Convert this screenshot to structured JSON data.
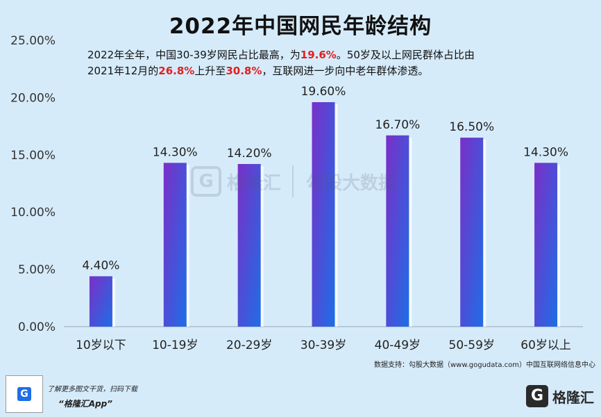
{
  "chart_data": {
    "type": "bar",
    "title": "2022年中国网民年龄结构",
    "categories": [
      "10岁以下",
      "10-19岁",
      "20-29岁",
      "30-39岁",
      "40-49岁",
      "50-59岁",
      "60岁以上"
    ],
    "values": [
      4.4,
      14.3,
      14.2,
      19.6,
      16.7,
      16.5,
      14.3
    ],
    "value_labels": [
      "4.40%",
      "14.30%",
      "14.20%",
      "19.60%",
      "16.70%",
      "16.50%",
      "14.30%"
    ],
    "ylim": [
      0,
      25
    ],
    "yticks": [
      0,
      5,
      10,
      15,
      20,
      25
    ],
    "ytick_labels": [
      "0.00%",
      "5.00%",
      "10.00%",
      "15.00%",
      "20.00%",
      "25.00%"
    ],
    "xlabel": "",
    "ylabel": "",
    "grid": false,
    "legend": "none",
    "bar_gradient": [
      "#7a2fc8",
      "#1e6ee6"
    ],
    "annotation_segments": [
      {
        "text": "2022年全年，中国30-39岁网民占比最高，为",
        "highlight": false
      },
      {
        "text": "19.6%",
        "highlight": true
      },
      {
        "text": "。50岁及以上网民群体占比由",
        "highlight": false
      },
      {
        "text": "2021年12月的",
        "highlight": false,
        "break_before": true
      },
      {
        "text": "26.8%",
        "highlight": true
      },
      {
        "text": "上升至",
        "highlight": false
      },
      {
        "text": "30.8%",
        "highlight": true
      },
      {
        "text": "，互联网进一步向中老年群体渗透。",
        "highlight": false
      }
    ]
  },
  "source": "数据支持：勾股大数据（www.gogudata.com）中国互联网络信息中心",
  "promo": {
    "line1": "了解更多图文干货，扫码下载",
    "line2": "“格隆汇App”"
  },
  "brand": {
    "mark": "G",
    "name": "格隆汇"
  },
  "watermark": {
    "mark": "G",
    "brand": "格隆汇",
    "text": "勾股大数据"
  },
  "colors": {
    "background": "#d6ebfa",
    "highlight": "#e02020",
    "bar_top": "#7a2fc8",
    "bar_bottom": "#1e6ee6"
  }
}
